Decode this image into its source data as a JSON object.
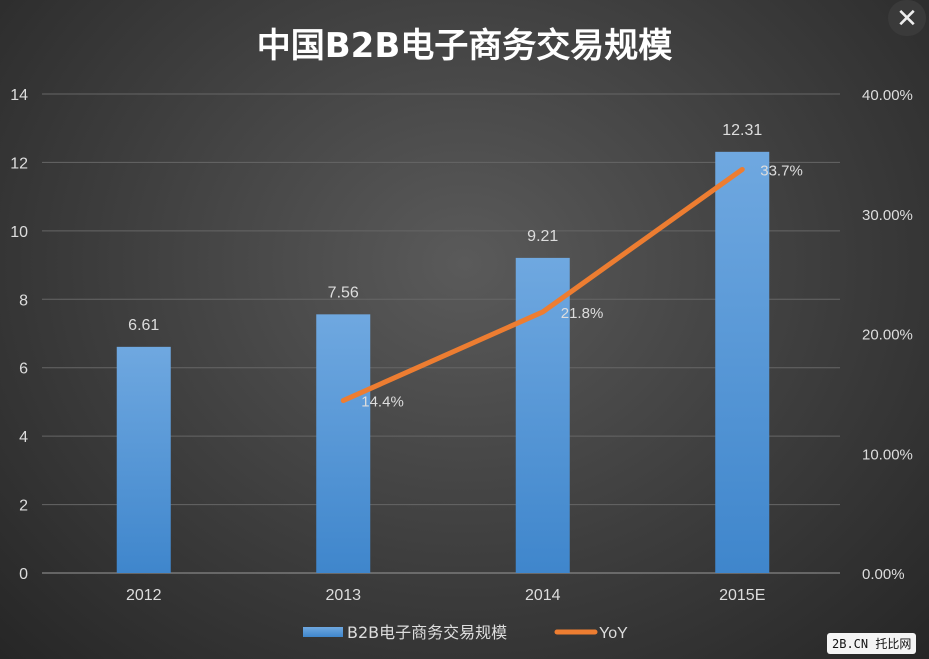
{
  "chart_data": {
    "type": "bar+line",
    "title": "中国B2B电子商务交易规模",
    "categories": [
      "2012",
      "2013",
      "2014",
      "2015E"
    ],
    "series": [
      {
        "name": "B2B电子商务交易规模",
        "type": "bar",
        "axis": "left",
        "values": [
          6.61,
          7.56,
          9.21,
          12.31
        ],
        "labels": [
          "6.61",
          "7.56",
          "9.21",
          "12.31"
        ],
        "color": "#5b9bd5"
      },
      {
        "name": "YoY",
        "type": "line",
        "axis": "right",
        "values": [
          null,
          14.4,
          21.8,
          33.7
        ],
        "labels": [
          "",
          "14.4%",
          "21.8%",
          "33.7%"
        ],
        "color": "#ed7d31"
      }
    ],
    "left_axis": {
      "ylim": [
        0,
        14
      ],
      "ticks": [
        "0",
        "2",
        "4",
        "6",
        "8",
        "10",
        "12",
        "14"
      ]
    },
    "right_axis": {
      "ylim": [
        0,
        40
      ],
      "ticks": [
        "0.00%",
        "10.00%",
        "20.00%",
        "30.00%",
        "40.00%"
      ]
    },
    "grid": true,
    "legend": "bottom"
  },
  "close_label": "✕",
  "watermark": "2B.CN 托比网"
}
